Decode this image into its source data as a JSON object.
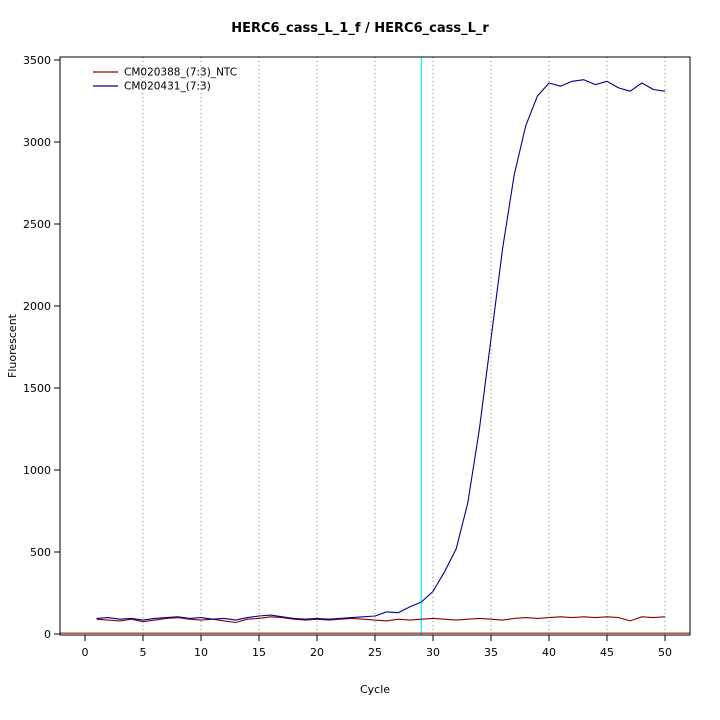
{
  "title": "HERC6_cass_L_1_f / HERC6_cass_L_r",
  "chart_data": {
    "type": "line",
    "title": "HERC6_cass_L_1_f / HERC6_cass_L_r",
    "xlabel": "Cycle",
    "ylabel": "Fluorescent",
    "xlim": [
      0,
      50
    ],
    "ylim": [
      0,
      3500
    ],
    "xticks": [
      0,
      5,
      10,
      15,
      20,
      25,
      30,
      35,
      40,
      45,
      50
    ],
    "yticks": [
      0,
      500,
      1000,
      1500,
      2000,
      2500,
      3000,
      3500
    ],
    "grid": "vertical-dotted",
    "legend_position": "top-left",
    "threshold_cycle_line": {
      "x": 29,
      "color": "#00FFFF"
    },
    "baseline": {
      "y": 5,
      "color": "#8B0000"
    },
    "x": [
      1,
      2,
      3,
      4,
      5,
      6,
      7,
      8,
      9,
      10,
      11,
      12,
      13,
      14,
      15,
      16,
      17,
      18,
      19,
      20,
      21,
      22,
      23,
      24,
      25,
      26,
      27,
      28,
      29,
      30,
      31,
      32,
      33,
      34,
      35,
      36,
      37,
      38,
      39,
      40,
      41,
      42,
      43,
      44,
      45,
      46,
      47,
      48,
      49,
      50
    ],
    "series": [
      {
        "name": "CM020388_(7:3)_NTC",
        "color": "#8B0000",
        "values": [
          90,
          85,
          80,
          90,
          75,
          85,
          95,
          100,
          90,
          85,
          90,
          80,
          70,
          90,
          95,
          105,
          100,
          90,
          85,
          90,
          85,
          90,
          95,
          90,
          85,
          80,
          90,
          85,
          90,
          95,
          90,
          85,
          90,
          95,
          90,
          85,
          95,
          100,
          95,
          100,
          105,
          100,
          105,
          100,
          105,
          100,
          80,
          105,
          100,
          105
        ]
      },
      {
        "name": "CM020431_(7:3)",
        "color": "#00008B",
        "values": [
          95,
          100,
          90,
          95,
          85,
          95,
          100,
          105,
          95,
          100,
          90,
          95,
          85,
          100,
          110,
          115,
          105,
          95,
          90,
          95,
          90,
          95,
          100,
          105,
          110,
          135,
          130,
          165,
          195,
          260,
          380,
          520,
          800,
          1250,
          1800,
          2350,
          2800,
          3100,
          3280,
          3360,
          3340,
          3370,
          3380,
          3350,
          3370,
          3330,
          3310,
          3360,
          3320,
          3310
        ]
      }
    ]
  },
  "colors": {
    "axis": "#000000",
    "grid": "#808080",
    "background": "#ffffff"
  }
}
